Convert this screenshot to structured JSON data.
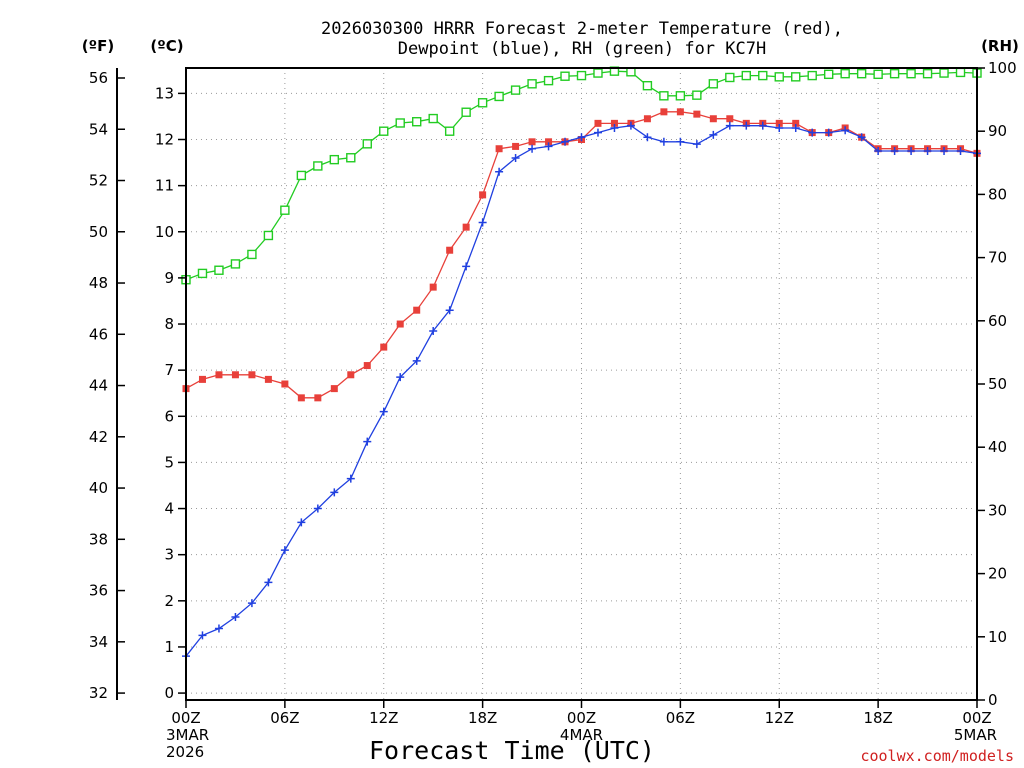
{
  "chart_data": {
    "type": "line",
    "title_line1": "2026030300 HRRR Forecast 2-meter Temperature (red),",
    "title_line2": "Dewpoint (blue), RH (green) for KC7H",
    "xlabel": "Forecast Time (UTC)",
    "credit": "coolwx.com/models",
    "units": {
      "fahrenheit": "(ºF)",
      "celsius": "(ºC)",
      "rh": "(RH)"
    },
    "axes": {
      "x_hours_range": [
        0,
        48
      ],
      "x_ticks": [
        {
          "hour": 0,
          "label": "00Z",
          "sub1": "3MAR",
          "sub2": "2026"
        },
        {
          "hour": 6,
          "label": "06Z",
          "sub1": "",
          "sub2": ""
        },
        {
          "hour": 12,
          "label": "12Z",
          "sub1": "",
          "sub2": ""
        },
        {
          "hour": 18,
          "label": "18Z",
          "sub1": "",
          "sub2": ""
        },
        {
          "hour": 24,
          "label": "00Z",
          "sub1": "4MAR",
          "sub2": ""
        },
        {
          "hour": 30,
          "label": "06Z",
          "sub1": "",
          "sub2": ""
        },
        {
          "hour": 36,
          "label": "12Z",
          "sub1": "",
          "sub2": ""
        },
        {
          "hour": 42,
          "label": "18Z",
          "sub1": "",
          "sub2": ""
        },
        {
          "hour": 48,
          "label": "00Z",
          "sub1": "5MAR",
          "sub2": ""
        }
      ],
      "celsius_range": [
        -0.15,
        13.55
      ],
      "celsius_ticks": [
        "0",
        "1",
        "2",
        "3",
        "4",
        "5",
        "6",
        "7",
        "8",
        "9",
        "10",
        "11",
        "12",
        "13"
      ],
      "fahrenheit_ticks": [
        "32",
        "34",
        "36",
        "38",
        "40",
        "42",
        "44",
        "46",
        "48",
        "50",
        "52",
        "54",
        "56"
      ],
      "rh_range": [
        0,
        100
      ],
      "rh_ticks": [
        "0",
        "10",
        "20",
        "30",
        "40",
        "50",
        "60",
        "70",
        "80",
        "90",
        "100"
      ],
      "grid": true
    },
    "series": [
      {
        "key": "temperature",
        "color": "#e8403a",
        "marker": "filled-square",
        "axis": "celsius",
        "values": [
          6.6,
          6.8,
          6.9,
          6.9,
          6.9,
          6.8,
          6.7,
          6.4,
          6.4,
          6.6,
          6.9,
          7.1,
          7.5,
          8.0,
          8.3,
          8.8,
          9.6,
          10.1,
          10.8,
          11.8,
          11.85,
          11.95,
          11.95,
          11.95,
          12.0,
          12.35,
          12.35,
          12.35,
          12.45,
          12.6,
          12.6,
          12.55,
          12.45,
          12.45,
          12.35,
          12.35,
          12.35,
          12.35,
          12.15,
          12.15,
          12.25,
          12.05,
          11.8,
          11.8,
          11.8,
          11.8,
          11.8,
          11.8,
          11.7
        ]
      },
      {
        "key": "dewpoint",
        "color": "#2040e0",
        "marker": "plus",
        "axis": "celsius",
        "values": [
          0.8,
          1.25,
          1.4,
          1.65,
          1.95,
          2.4,
          3.1,
          3.7,
          4.0,
          4.35,
          4.65,
          5.45,
          6.1,
          6.85,
          7.2,
          7.85,
          8.3,
          9.25,
          10.2,
          11.3,
          11.6,
          11.8,
          11.85,
          11.95,
          12.05,
          12.15,
          12.25,
          12.3,
          12.05,
          11.95,
          11.95,
          11.9,
          12.1,
          12.3,
          12.3,
          12.3,
          12.25,
          12.25,
          12.15,
          12.15,
          12.2,
          12.05,
          11.75,
          11.75,
          11.75,
          11.75,
          11.75,
          11.75,
          11.7
        ]
      },
      {
        "key": "rh",
        "color": "#22cc22",
        "marker": "open-square",
        "axis": "rh",
        "values": [
          66.5,
          67.5,
          68,
          69,
          70.5,
          73.5,
          77.5,
          83,
          84.5,
          85.5,
          85.8,
          88,
          90,
          91.3,
          91.5,
          92,
          90,
          93,
          94.5,
          95.5,
          96.5,
          97.5,
          98,
          98.7,
          98.8,
          99.2,
          99.5,
          99.4,
          97.2,
          95.6,
          95.6,
          95.7,
          97.5,
          98.5,
          98.8,
          98.8,
          98.6,
          98.6,
          98.8,
          99,
          99.1,
          99.1,
          99,
          99.1,
          99.1,
          99.1,
          99.2,
          99.3,
          99.2
        ]
      }
    ]
  }
}
